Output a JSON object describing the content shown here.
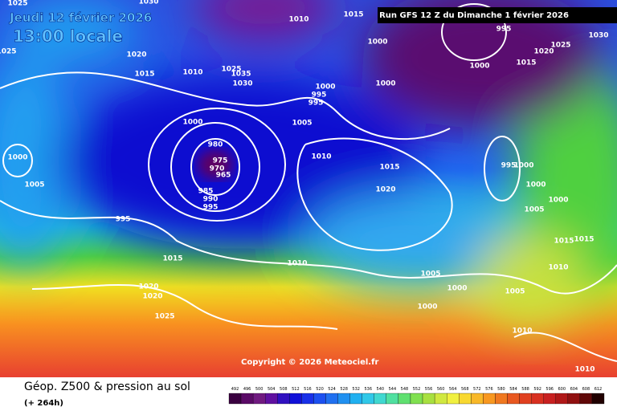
{
  "header": {
    "date": "Jeudi 12 février 2026",
    "time": "13:00 locale",
    "run": "Run GFS 12 Z du Dimanche 1 février 2026"
  },
  "footer": {
    "title": "Géop. Z500 & pression au sol",
    "lead": "(+ 264h)",
    "copyright": "Copyright © 2026 Meteociel.fr"
  },
  "isobar_labels": [
    "1025",
    "1025",
    "1030",
    "1020",
    "1015",
    "1010",
    "1025",
    "1035",
    "1030",
    "1010",
    "1015",
    "1000",
    "1000",
    "995",
    "995",
    "1000",
    "1000",
    "995",
    "1015",
    "1020",
    "1025",
    "1030",
    "1000",
    "1005",
    "980",
    "975",
    "970",
    "965",
    "985",
    "990",
    "995",
    "1000",
    "1005",
    "995",
    "1010",
    "1015",
    "1020",
    "995",
    "1000",
    "1000",
    "1000",
    "1005",
    "1015",
    "1015",
    "1010",
    "1015",
    "1010",
    "1005",
    "1000",
    "1005",
    "1000",
    "1020",
    "1020",
    "1025",
    "1010",
    "1010"
  ],
  "colorbar": {
    "labels": [
      492,
      496,
      500,
      504,
      508,
      512,
      516,
      520,
      524,
      528,
      532,
      536,
      540,
      544,
      548,
      552,
      556,
      560,
      564,
      568,
      572,
      576,
      580,
      584,
      588,
      592,
      596,
      600,
      604,
      608,
      612
    ],
    "colors": [
      "#3a0040",
      "#5a0a66",
      "#701a80",
      "#6010a0",
      "#3010c0",
      "#1010d8",
      "#1830e8",
      "#1c50f0",
      "#2070f0",
      "#2090f0",
      "#20b0f0",
      "#30c8e8",
      "#40d8d0",
      "#50e0a0",
      "#60e070",
      "#80e050",
      "#a8e040",
      "#d0e840",
      "#f0f040",
      "#f8d830",
      "#f8b828",
      "#f89820",
      "#f07820",
      "#e85820",
      "#e04020",
      "#d83020",
      "#c82020",
      "#b01818",
      "#901010",
      "#600808",
      "#200000"
    ]
  }
}
